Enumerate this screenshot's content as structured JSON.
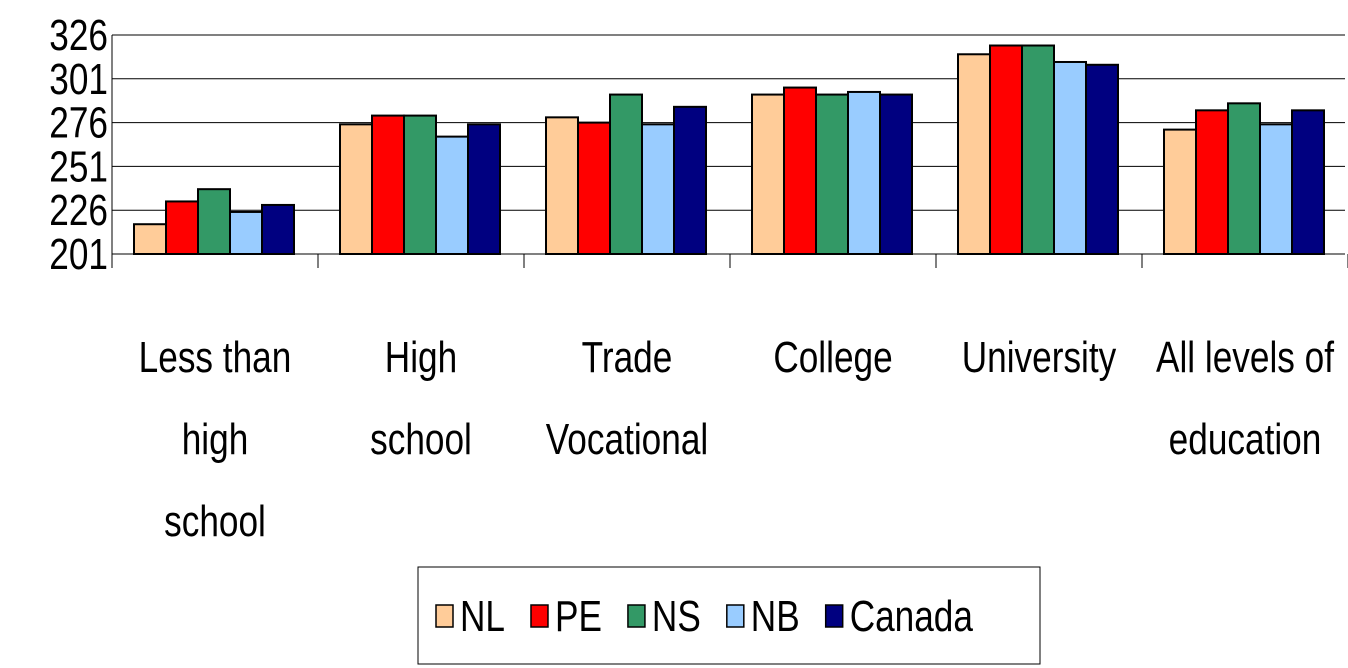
{
  "chart_data": {
    "type": "bar",
    "categories": [
      "Less than\nhigh\nschool",
      "High\nschool",
      "Trade\nVocational",
      "College",
      "University",
      "All levels of\neducation"
    ],
    "series": [
      {
        "name": "NL",
        "color": "#ffcc99",
        "values": [
          218,
          275,
          279,
          292,
          315,
          272
        ]
      },
      {
        "name": "PE",
        "color": "#ff0000",
        "values": [
          231,
          280,
          276,
          296,
          320,
          283
        ]
      },
      {
        "name": "NS",
        "color": "#339966",
        "values": [
          238,
          280,
          292,
          292,
          320,
          287
        ]
      },
      {
        "name": "NB",
        "color": "#99ccff",
        "values": [
          225,
          268,
          275,
          293.5,
          310.6,
          275
        ]
      },
      {
        "name": "Canada",
        "color": "#000080",
        "values": [
          229,
          275,
          285,
          292,
          309,
          283
        ]
      }
    ],
    "ylim": [
      201,
      326
    ],
    "yticks": [
      201,
      226,
      251,
      276,
      301,
      326
    ],
    "grid": true,
    "legend": "bottom"
  }
}
